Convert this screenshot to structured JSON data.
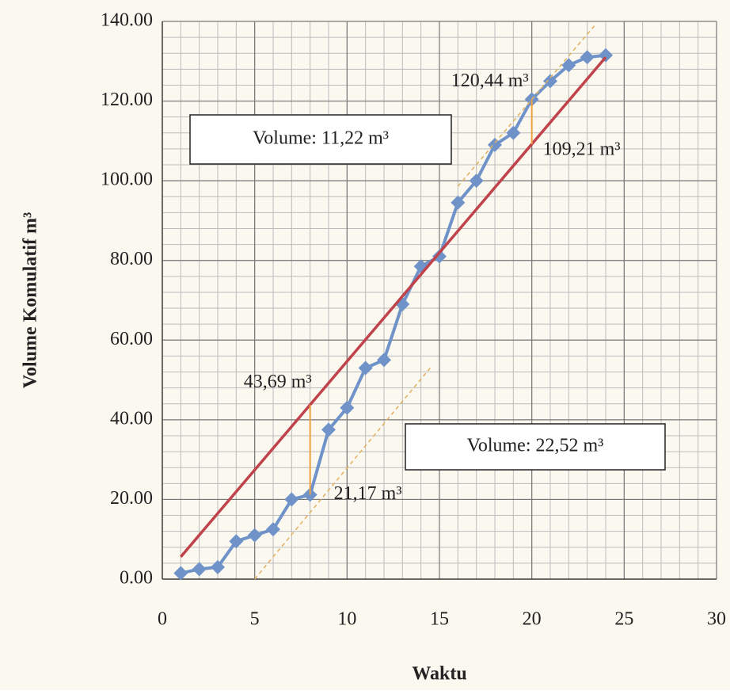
{
  "chart_data": {
    "type": "line",
    "y_label": "Volume Komulatif m³",
    "x_label": "Waktu",
    "xlim": [
      0,
      30
    ],
    "xticks": [
      0,
      5,
      10,
      15,
      20,
      25,
      30
    ],
    "ylim": [
      0,
      140
    ],
    "yticks": [
      {
        "value": 0,
        "label": "0.00"
      },
      {
        "value": 20,
        "label": "20.00"
      },
      {
        "value": 40,
        "label": "40.00"
      },
      {
        "value": 60,
        "label": "60.00"
      },
      {
        "value": 80,
        "label": "80.00"
      },
      {
        "value": 100,
        "label": "100.00"
      },
      {
        "value": 120,
        "label": "120.00"
      },
      {
        "value": 140,
        "label": "140.00"
      }
    ],
    "grid": true,
    "xminor": 1,
    "yminor": 4,
    "series": [
      {
        "color": "#6f93c9",
        "marker": true,
        "width": 4,
        "x": [
          1,
          2,
          3,
          4,
          5,
          6,
          7,
          8,
          9,
          10,
          11,
          12,
          13,
          14,
          15,
          16,
          17,
          18,
          19,
          20,
          21,
          22,
          23,
          24
        ],
        "values": [
          1.5,
          2.5,
          3,
          9.5,
          11,
          12.5,
          20,
          21.17,
          37.5,
          43,
          53,
          55,
          69,
          78.5,
          81,
          94.5,
          100,
          109,
          112,
          120.44,
          125,
          129,
          131,
          131.5
        ]
      },
      {
        "color": "#c0424b",
        "marker": false,
        "width": 3.5,
        "x": [
          1,
          24
        ],
        "values": [
          5.6,
          131
        ]
      },
      {
        "color": "#e2b060",
        "marker": false,
        "width": 1.5,
        "dashed": true,
        "x": [
          5,
          14.5
        ],
        "values": [
          0,
          53
        ]
      },
      {
        "color": "#e2b060",
        "marker": false,
        "width": 1.5,
        "dashed": true,
        "x": [
          16,
          23.5
        ],
        "values": [
          98.6,
          139.5
        ]
      }
    ],
    "gaps": [
      {
        "x": 8,
        "low": 21.17,
        "high": 43.69,
        "low_label": "21,17 m³",
        "high_label": "43,69 m³",
        "color": "#f0a040"
      },
      {
        "x": 20,
        "low": 109.21,
        "high": 120.44,
        "low_label": "109,21 m³",
        "high_label": "120,44 m³",
        "color": "#f0a040"
      }
    ],
    "boxes": [
      "Volume: 11,22 m³",
      "Volume: 22,52 m³"
    ]
  }
}
